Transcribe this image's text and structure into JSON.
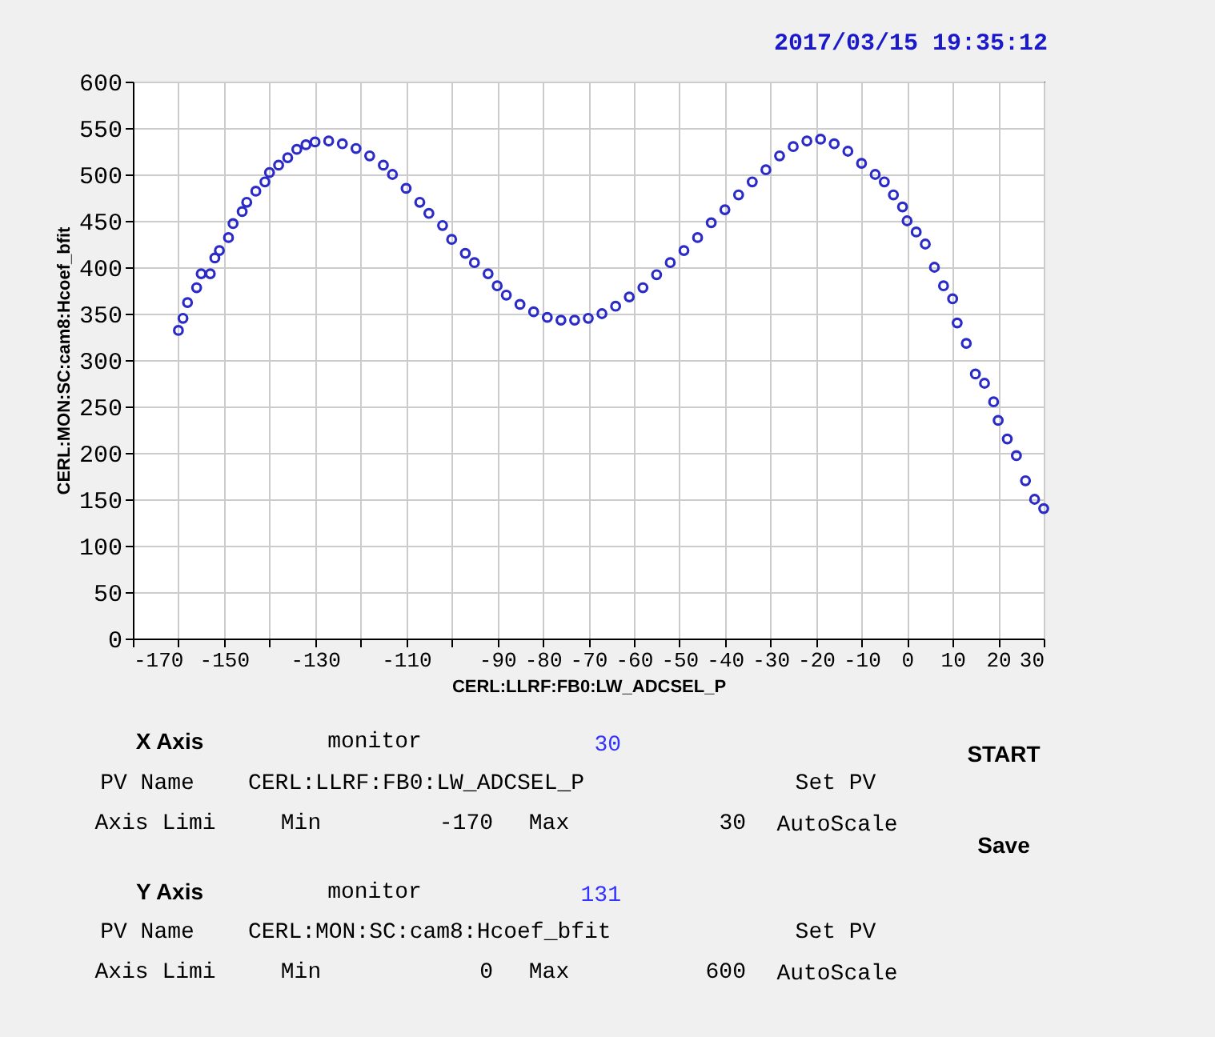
{
  "chart_data": {
    "type": "scatter",
    "xlabel": "CERL:LLRF:FB0:LW_ADCSEL_P",
    "ylabel": "CERL:MON:SC:cam8:Hcoef_bfit",
    "x": [
      -160,
      -159,
      -158,
      -156,
      -155,
      -153,
      -152,
      -151,
      -149,
      -148,
      -146,
      -145,
      -143,
      -141,
      -140,
      -138,
      -136,
      -134,
      -132,
      -130,
      -127,
      -124,
      -121,
      -118,
      -115,
      -113,
      -110,
      -107,
      -105,
      -102,
      -100,
      -97,
      -95,
      -92,
      -90,
      -88,
      -85,
      -82,
      -79,
      -76,
      -73,
      -70,
      -67,
      -64,
      -61,
      -58,
      -55,
      -52,
      -49,
      -46,
      -43,
      -40,
      -37,
      -34,
      -31,
      -28,
      -25,
      -22,
      -19,
      -16,
      -13,
      -10,
      -7,
      -5,
      -3,
      -1,
      0,
      2,
      4,
      6,
      8,
      10,
      11,
      13,
      15,
      17,
      19,
      20,
      22,
      24,
      26,
      28,
      30
    ],
    "series": [
      {
        "color": "#2b2bc8",
        "values": [
          332,
          345,
          362,
          378,
          393,
          393,
          410,
          418,
          432,
          447,
          460,
          470,
          482,
          492,
          502,
          510,
          518,
          527,
          532,
          535,
          536,
          533,
          528,
          520,
          510,
          500,
          485,
          470,
          458,
          445,
          430,
          415,
          405,
          393,
          380,
          370,
          360,
          352,
          346,
          343,
          343,
          345,
          350,
          358,
          368,
          378,
          392,
          405,
          418,
          432,
          448,
          462,
          478,
          492,
          505,
          520,
          530,
          536,
          538,
          533,
          525,
          512,
          500,
          492,
          478,
          465,
          450,
          438,
          425,
          400,
          380,
          366,
          340,
          318,
          285,
          275,
          255,
          235,
          215,
          197,
          170,
          150,
          140
        ]
      }
    ],
    "xlim": [
      -170,
      30
    ],
    "xticks": [
      -170,
      {
        "value": -160,
        "label": null
      },
      -150,
      {
        "value": -140,
        "label": null
      },
      -130,
      {
        "value": -120,
        "label": null
      },
      -110,
      {
        "value": -100,
        "label": null
      },
      -90,
      -80,
      -70,
      -60,
      -50,
      -40,
      -30,
      -20,
      -10,
      0,
      10,
      20,
      30
    ],
    "ylim": [
      0,
      600
    ],
    "yticks": [
      0,
      50,
      100,
      150,
      200,
      250,
      300,
      350,
      400,
      450,
      500,
      550,
      600
    ],
    "grid": true,
    "marker": "circle",
    "annotations": [
      "2017/03/15 19:35:12",
      "X Axis",
      "monitor",
      "30",
      "PV Name",
      "CERL:LLRF:FB0:LW_ADCSEL_P",
      "Set PV",
      "Axis Limi",
      "Min",
      "-170",
      "Max",
      "30",
      "AutoScale",
      "Y Axis",
      "monitor",
      "131",
      "PV Name",
      "CERL:MON:SC:cam8:Hcoef_bfit",
      "Set PV",
      "Axis Limi",
      "Min",
      "0",
      "Max",
      "600",
      "AutoScale",
      "START",
      "Save"
    ]
  }
}
